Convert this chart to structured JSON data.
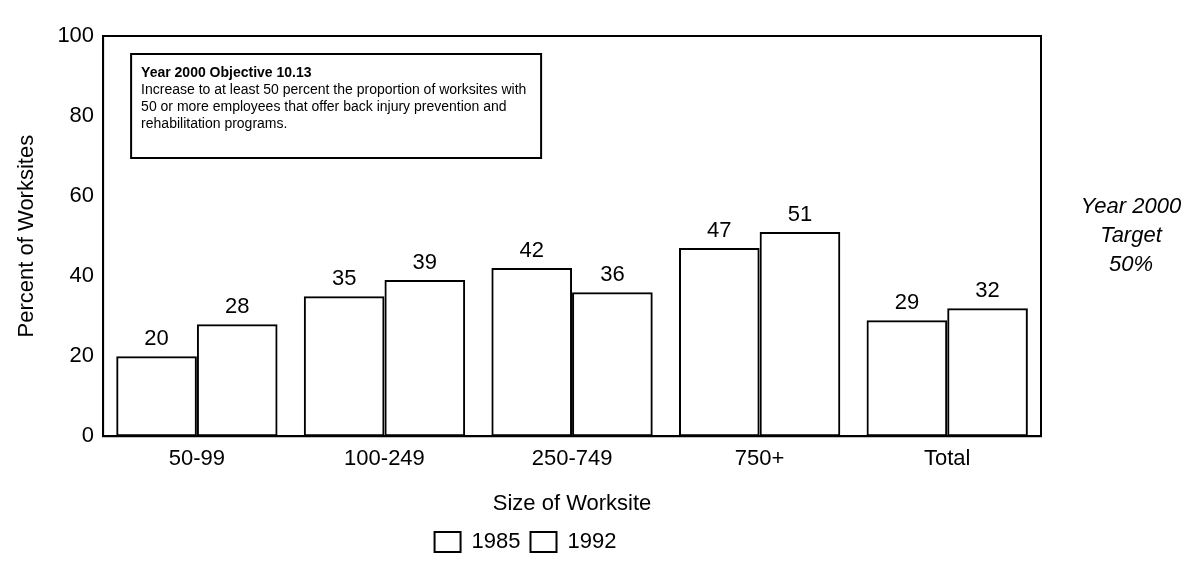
{
  "chart_data": {
    "type": "bar",
    "xlabel": "Size of Worksite",
    "ylabel": "Percent of Worksites",
    "categories": [
      "50-99",
      "100-249",
      "250-749",
      "750+",
      "Total"
    ],
    "series": [
      {
        "name": "1985",
        "color": "#000000",
        "values": [
          20,
          35,
          42,
          47,
          29
        ]
      },
      {
        "name": "1992",
        "color": "#000000",
        "values": [
          28,
          39,
          36,
          51,
          32
        ]
      }
    ],
    "ylim": [
      0,
      100
    ],
    "yticks": [
      0,
      20,
      40,
      60,
      80,
      100
    ],
    "grid": false,
    "legend": "bottom",
    "data_labels": true,
    "annotations": [
      "Year 2000 Objective 10.13",
      "Increase to at least 50 percent the proportion of worksites with 50 or more employees that offer back injury prevention and rehabilitation programs.",
      "Year 2000 Target 50%"
    ]
  }
}
